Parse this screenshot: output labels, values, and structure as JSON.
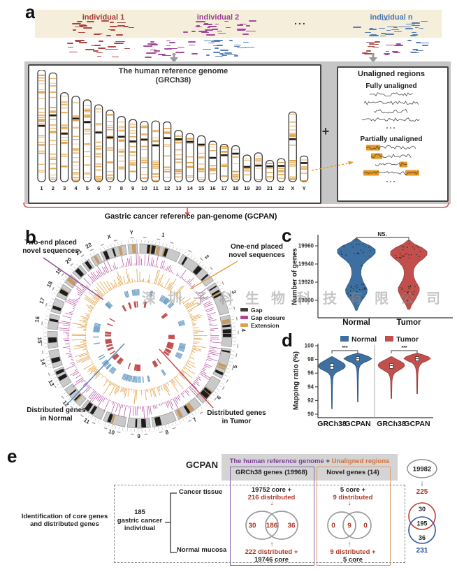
{
  "panels": {
    "a": "a",
    "b": "b",
    "c": "c",
    "d": "d",
    "e": "e"
  },
  "watermark": "深圳子科生物科技有限公司",
  "panel_a": {
    "individual1": "individual 1",
    "individual2": "individual 2",
    "individual_n": "individual n",
    "dots": "...",
    "ref_title1": "The human reference genome",
    "ref_title2": "(GRCh38)",
    "plus": "+",
    "chromosomes": [
      "1",
      "2",
      "3",
      "4",
      "5",
      "6",
      "7",
      "8",
      "9",
      "10",
      "11",
      "12",
      "13",
      "14",
      "15",
      "16",
      "17",
      "18",
      "19",
      "20",
      "21",
      "22",
      "X",
      "Y"
    ],
    "unaligned_title": "Unaligned regions",
    "fully_label": "Fully unaligned",
    "partially_label": "Partially unaligned",
    "ellipsis": "...",
    "fully_rows": 4,
    "partial_highlights": [
      [
        "left"
      ],
      [
        "left"
      ],
      [
        "right"
      ],
      [
        "left",
        "right"
      ]
    ],
    "brace_label": "Gastric cancer reference pan-genome (GCPAN)",
    "colors": {
      "band": "#f5eeda",
      "red": "#a63c38",
      "magenta": "#9c3d94",
      "blue": "#4a77b0",
      "chrom_band": "#e2a043",
      "highlight": "#e8971e",
      "brace": "#d9534f"
    }
  },
  "panel_b": {
    "callout_two_end_1": "Two-end placed",
    "callout_two_end_2": "novel sequences",
    "callout_one_end_1": "One-end placed",
    "callout_one_end_2": "novel sequences",
    "callout_normal_1": "Distributed genes",
    "callout_normal_2": "in Normal",
    "callout_tumor_1": "Distributed genes",
    "callout_tumor_2": "in Tumor",
    "legend": [
      {
        "label": "Gap",
        "color": "#3d3d3d"
      },
      {
        "label": "Gap closure",
        "color": "#b5438f"
      },
      {
        "label": "Extension",
        "color": "#dfa050"
      }
    ],
    "track_colors": {
      "two_end": "#bc5da7",
      "one_end": "#e5a144",
      "normal": "#78a6cb",
      "tumor": "#c0504d"
    }
  },
  "chart_data": [
    {
      "panel": "c",
      "type": "violin",
      "ylabel": "Number of genes",
      "yticks": [
        19900,
        19920,
        19940,
        19960
      ],
      "ylim": [
        19885,
        19970
      ],
      "categories": [
        "Normal",
        "Tumor"
      ],
      "significance": "NS.",
      "series": [
        {
          "name": "Normal",
          "color": "#3d6fa0",
          "edge": "#2d567e",
          "mode1": 19955,
          "mode2": 19910,
          "min": 19889,
          "max": 19968,
          "profile": [
            [
              19968,
              1.5
            ],
            [
              19964,
              8
            ],
            [
              19960,
              20
            ],
            [
              19956,
              27
            ],
            [
              19952,
              27
            ],
            [
              19948,
              22
            ],
            [
              19944,
              15
            ],
            [
              19940,
              10
            ],
            [
              19936,
              7.5
            ],
            [
              19932,
              6.5
            ],
            [
              19928,
              6.5
            ],
            [
              19924,
              8
            ],
            [
              19920,
              10
            ],
            [
              19916,
              13
            ],
            [
              19912,
              15.5
            ],
            [
              19908,
              15
            ],
            [
              19904,
              12
            ],
            [
              19900,
              8
            ],
            [
              19896,
              5
            ],
            [
              19892,
              2.5
            ],
            [
              19889,
              1
            ]
          ]
        },
        {
          "name": "Tumor",
          "color": "#c14f4c",
          "edge": "#99403d",
          "mode1": 19953,
          "mode2": 19909,
          "min": 19887,
          "max": 19966,
          "profile": [
            [
              19966,
              1.5
            ],
            [
              19962,
              8
            ],
            [
              19958,
              19
            ],
            [
              19954,
              26
            ],
            [
              19950,
              26
            ],
            [
              19946,
              21
            ],
            [
              19942,
              14
            ],
            [
              19938,
              9.5
            ],
            [
              19934,
              7
            ],
            [
              19930,
              6.5
            ],
            [
              19926,
              7
            ],
            [
              19922,
              9
            ],
            [
              19918,
              12
            ],
            [
              19914,
              15
            ],
            [
              19910,
              15
            ],
            [
              19906,
              12.5
            ],
            [
              19902,
              10
            ],
            [
              19898,
              6.5
            ],
            [
              19894,
              3.5
            ],
            [
              19890,
              1.5
            ]
          ]
        }
      ]
    },
    {
      "panel": "d",
      "type": "violin",
      "ylabel": "Mapping ratio (%)",
      "yticks": [
        90,
        92,
        94,
        96,
        98,
        100
      ],
      "ylim": [
        90,
        100
      ],
      "legend": [
        {
          "label": "Normal",
          "color": "#3d6fa0"
        },
        {
          "label": "Tumor",
          "color": "#c14f4c"
        }
      ],
      "categories": [
        "GRCh38",
        "GCPAN",
        "GRCh38",
        "GCPAN"
      ],
      "significance": [
        "***",
        "***"
      ],
      "violins": [
        {
          "group": "Normal",
          "x": "GRCh38",
          "color": "#3d6fa0",
          "edge": "#2d567e",
          "median": 97.0,
          "iqr": [
            96.6,
            97.4
          ],
          "min": 90.8,
          "max": 98.4,
          "profile": [
            [
              98.4,
              1
            ],
            [
              98.1,
              6
            ],
            [
              97.8,
              11
            ],
            [
              97.5,
              16
            ],
            [
              97.2,
              19
            ],
            [
              96.9,
              19
            ],
            [
              96.6,
              16
            ],
            [
              96.3,
              10
            ],
            [
              96.0,
              5
            ],
            [
              95.6,
              2.2
            ],
            [
              95.0,
              1.2
            ],
            [
              94.0,
              0.8
            ],
            [
              92.5,
              0.6
            ],
            [
              90.8,
              0.4
            ]
          ]
        },
        {
          "group": "Normal",
          "x": "GCPAN",
          "color": "#3d6fa0",
          "edge": "#2d567e",
          "median": 98.1,
          "iqr": [
            97.8,
            98.4
          ],
          "min": 91.8,
          "max": 98.9,
          "profile": [
            [
              98.9,
              1
            ],
            [
              98.7,
              8
            ],
            [
              98.4,
              16
            ],
            [
              98.1,
              20
            ],
            [
              97.8,
              15
            ],
            [
              97.5,
              8
            ],
            [
              97.2,
              4
            ],
            [
              96.8,
              2
            ],
            [
              96.2,
              1.2
            ],
            [
              95.0,
              0.8
            ],
            [
              93.5,
              0.6
            ],
            [
              91.8,
              0.4
            ]
          ]
        },
        {
          "group": "Tumor",
          "x": "GRCh38",
          "color": "#c14f4c",
          "edge": "#99403d",
          "median": 97.1,
          "iqr": [
            96.7,
            97.4
          ],
          "min": 92.3,
          "max": 98.4,
          "profile": [
            [
              98.4,
              1
            ],
            [
              98.1,
              6
            ],
            [
              97.8,
              12
            ],
            [
              97.5,
              17
            ],
            [
              97.2,
              19
            ],
            [
              96.9,
              18
            ],
            [
              96.6,
              14
            ],
            [
              96.3,
              9
            ],
            [
              96.0,
              4.5
            ],
            [
              95.5,
              2
            ],
            [
              94.8,
              1
            ],
            [
              93.5,
              0.7
            ],
            [
              92.3,
              0.5
            ]
          ]
        },
        {
          "group": "Tumor",
          "x": "GCPAN",
          "color": "#c14f4c",
          "edge": "#99403d",
          "median": 98.1,
          "iqr": [
            97.8,
            98.4
          ],
          "min": 93.0,
          "max": 98.9,
          "profile": [
            [
              98.9,
              1
            ],
            [
              98.7,
              8
            ],
            [
              98.4,
              16
            ],
            [
              98.1,
              19
            ],
            [
              97.8,
              14
            ],
            [
              97.5,
              7
            ],
            [
              97.1,
              3.5
            ],
            [
              96.6,
              1.8
            ],
            [
              95.8,
              1
            ],
            [
              94.5,
              0.7
            ],
            [
              93.0,
              0.5
            ]
          ]
        }
      ]
    }
  ],
  "panel_e": {
    "gcpan": "GCPAN",
    "header_purple": "The human reference genome",
    "header_plus": "+",
    "header_orange": "Unaligned regions",
    "grch38_box": "GRCh38 genes (19968)",
    "novel_box": "Novel genes (14)",
    "left_title1": "Identification of core genes",
    "left_title2": "and distributed genes",
    "cohort1": "185",
    "cohort2": "gastric cancer",
    "cohort3": "individual",
    "cancer_tissue": "Cancer tissue",
    "normal_mucosa": "Normal mucosa",
    "grch38_top1": "19752 core +",
    "grch38_top2": "216 distributed",
    "grch38_venn": [
      "30",
      "186",
      "36"
    ],
    "grch38_bottom1": "222 distributed +",
    "grch38_bottom2": "19746 core",
    "novel_top1": "5 core +",
    "novel_top2": "9 distributed",
    "novel_venn": [
      "0",
      "9",
      "0"
    ],
    "novel_bottom1": "9 distributed +",
    "novel_bottom2": "5 core",
    "total_genes": "19982",
    "sum_red": "225",
    "sum_venn": [
      "30",
      "195",
      "36"
    ],
    "sum_blue": "231",
    "arrow_down": "↓",
    "arrow_up": "↑"
  }
}
